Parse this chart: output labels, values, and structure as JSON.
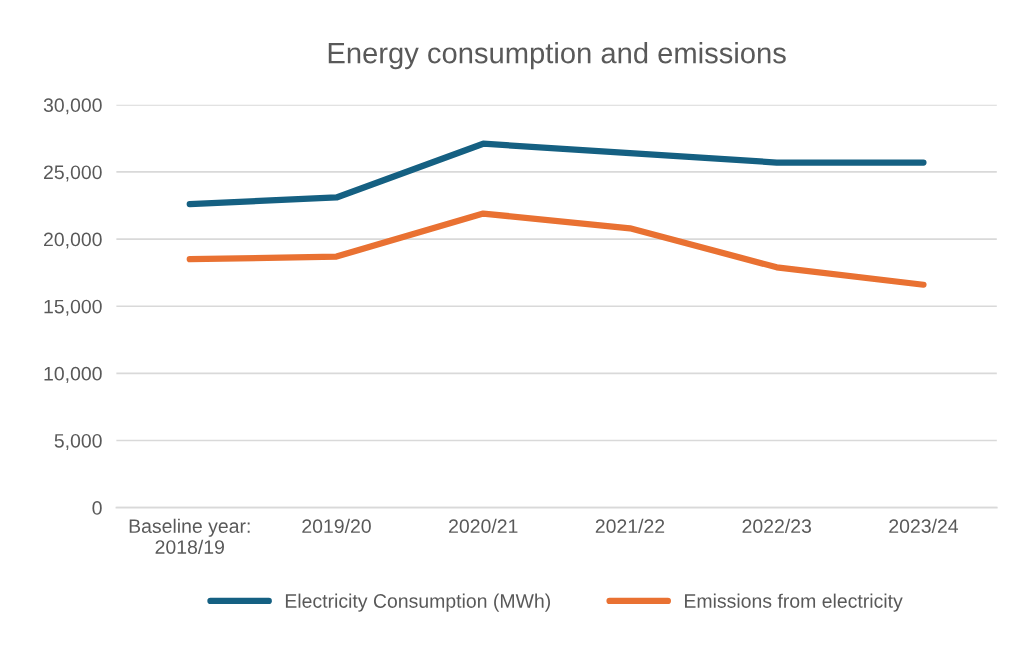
{
  "chart_data": {
    "type": "line",
    "title": "Energy consumption and emissions",
    "categories": [
      "Baseline year:\n2018/19",
      "2019/20",
      "2020/21",
      "2021/22",
      "2022/23",
      "2023/24"
    ],
    "series": [
      {
        "name": "Electricity Consumption (MWh)",
        "color": "#156082",
        "values": [
          22600,
          23100,
          27100,
          26400,
          25700,
          25700
        ]
      },
      {
        "name": "Emissions from electricity",
        "color": "#e97132",
        "values": [
          18500,
          18700,
          21900,
          20800,
          17900,
          16600
        ]
      }
    ],
    "ylim": [
      0,
      30000
    ],
    "yticks": [
      {
        "value": 0,
        "label": "0"
      },
      {
        "value": 5000,
        "label": "5,000"
      },
      {
        "value": 10000,
        "label": "10,000"
      },
      {
        "value": 15000,
        "label": "15,000"
      },
      {
        "value": 20000,
        "label": "20,000"
      },
      {
        "value": 25000,
        "label": "25,000"
      },
      {
        "value": 30000,
        "label": "30,000"
      }
    ],
    "grid": "y",
    "legend": "bottom",
    "marker": "none",
    "line_style": "solid"
  }
}
